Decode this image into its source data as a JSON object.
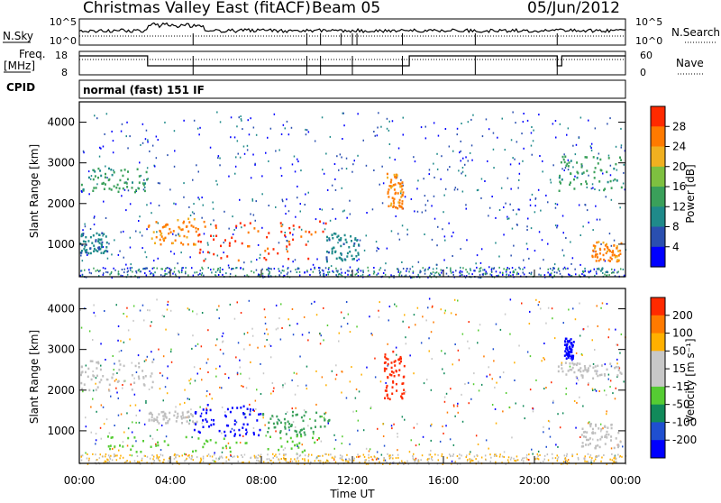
{
  "header": {
    "station": "Christmas Valley East (fitACF)",
    "beam": "Beam 05",
    "date": "05/Jun/2012"
  },
  "strip_labels": {
    "nsky": "N.Sky",
    "nsky_ticks": [
      "10^5",
      "10^0"
    ],
    "nsearch": "N.Search",
    "nsearch_ticks": [
      "10^5",
      "10^0"
    ],
    "freq": "Freq.",
    "freq_unit": "[MHz]",
    "freq_ticks": [
      "18",
      "8"
    ],
    "nave": "Nave",
    "nave_ticks": [
      "60",
      "0"
    ],
    "cpid": "CPID",
    "cpid_text": "normal (fast) 151 IF"
  },
  "colors": {
    "power_scale": [
      "#0000ff",
      "#2a4fb0",
      "#1f8a8a",
      "#3aa05a",
      "#7ec040",
      "#f0b020",
      "#ff7a00",
      "#ff2a00"
    ],
    "velocity_scale": [
      "#0000ff",
      "#1f4fd0",
      "#118a5a",
      "#55cc33",
      "#c8c8c8",
      "#c8c8c8",
      "#ffb000",
      "#ff7a00",
      "#ff2a00"
    ],
    "gray": "#bfbfbf"
  },
  "chart_data": [
    {
      "type": "heatmap",
      "name": "power",
      "ylabel": "Slant Range [km]",
      "ylim": [
        200,
        4500
      ],
      "yticks": [
        "1000",
        "2000",
        "3000",
        "4000"
      ],
      "xlim": [
        "00:00",
        "00:00"
      ],
      "colorbar_label": "Power [dB]",
      "colorbar_ticks": [
        "4",
        "8",
        "12",
        "16",
        "20",
        "24",
        "28"
      ],
      "features": [
        {
          "t_start": 0.0,
          "t_end": 3.0,
          "r_start": 2300,
          "r_end": 2900,
          "level": "green"
        },
        {
          "t_start": 0.0,
          "t_end": 1.2,
          "r_start": 800,
          "r_end": 1300,
          "level": "teal"
        },
        {
          "t_start": 3.0,
          "t_end": 5.2,
          "r_start": 1000,
          "r_end": 1700,
          "level": "orange"
        },
        {
          "t_start": 5.2,
          "t_end": 10.8,
          "r_start": 600,
          "r_end": 1600,
          "level": "red"
        },
        {
          "t_start": 10.8,
          "t_end": 12.3,
          "r_start": 600,
          "r_end": 1300,
          "level": "teal"
        },
        {
          "t_start": 13.5,
          "t_end": 14.2,
          "r_start": 1900,
          "r_end": 2800,
          "level": "orange"
        },
        {
          "t_start": 21.0,
          "t_end": 23.8,
          "r_start": 2300,
          "r_end": 3200,
          "level": "green"
        },
        {
          "t_start": 22.5,
          "t_end": 23.8,
          "r_start": 600,
          "r_end": 1100,
          "level": "orange"
        }
      ]
    },
    {
      "type": "heatmap",
      "name": "velocity",
      "ylabel": "Slant Range [km]",
      "xlabel": "Time UT",
      "ylim": [
        200,
        4500
      ],
      "yticks": [
        "1000",
        "2000",
        "3000",
        "4000"
      ],
      "xlim": [
        "00:00",
        "00:00"
      ],
      "xticks": [
        "00:00",
        "04:00",
        "08:00",
        "12:00",
        "16:00",
        "20:00",
        "00:00"
      ],
      "colorbar_label": "Velocity [m s⁻¹]",
      "colorbar_ticks": [
        "200",
        "100",
        "50",
        "15",
        "-15",
        "-50",
        "-100",
        "-200"
      ],
      "features": [
        {
          "t_start": 0.0,
          "t_end": 3.2,
          "r_start": 2000,
          "r_end": 2800,
          "level": "gray"
        },
        {
          "t_start": 3.0,
          "t_end": 5.2,
          "r_start": 1200,
          "r_end": 1500,
          "level": "gray"
        },
        {
          "t_start": 5.0,
          "t_end": 8.0,
          "r_start": 900,
          "r_end": 1700,
          "level": "blue"
        },
        {
          "t_start": 8.0,
          "t_end": 11.0,
          "r_start": 900,
          "r_end": 1500,
          "level": "green"
        },
        {
          "t_start": 1.2,
          "t_end": 10.5,
          "r_start": 500,
          "r_end": 900,
          "level": "lightgreen"
        },
        {
          "t_start": 13.3,
          "t_end": 14.3,
          "r_start": 1800,
          "r_end": 3000,
          "level": "red"
        },
        {
          "t_start": 21.0,
          "t_end": 23.8,
          "r_start": 2300,
          "r_end": 2700,
          "level": "gray"
        },
        {
          "t_start": 21.3,
          "t_end": 21.7,
          "r_start": 2800,
          "r_end": 3300,
          "level": "blue"
        },
        {
          "t_start": 22.0,
          "t_end": 23.8,
          "r_start": 600,
          "r_end": 1200,
          "level": "gray"
        }
      ]
    }
  ]
}
